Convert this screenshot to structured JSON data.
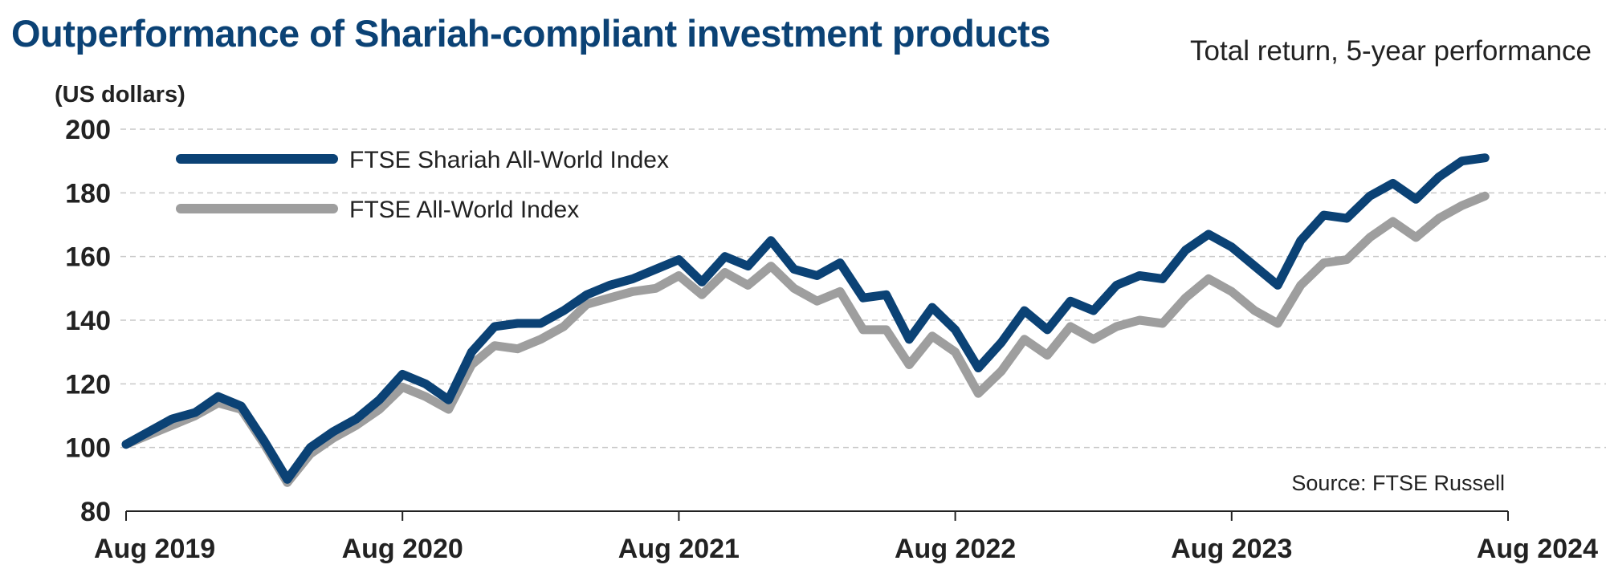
{
  "header": {
    "title": "Outperformance of Shariah-compliant investment products",
    "subtitle": "Total return, 5-year performance"
  },
  "chart_data": {
    "type": "line",
    "ylabel": "(US dollars)",
    "ylim": [
      80,
      200
    ],
    "yticks": [
      80,
      100,
      120,
      140,
      160,
      180,
      200
    ],
    "xlim": [
      0,
      60
    ],
    "xticks": [
      {
        "pos": 0,
        "label": "Aug 2019"
      },
      {
        "pos": 12,
        "label": "Aug 2020"
      },
      {
        "pos": 24,
        "label": "Aug 2021"
      },
      {
        "pos": 36,
        "label": "Aug 2022"
      },
      {
        "pos": 48,
        "label": "Aug 2023"
      },
      {
        "pos": 60,
        "label": "Aug 2024"
      }
    ],
    "grid": true,
    "legend_position": "top-left",
    "source": "Source: FTSE Russell",
    "series": [
      {
        "name": "FTSE Shariah All-World Index",
        "color": "#0b4275",
        "x": [
          0,
          1,
          2,
          3,
          4,
          5,
          6,
          7,
          8,
          9,
          10,
          11,
          12,
          13,
          14,
          15,
          16,
          17,
          18,
          19,
          20,
          21,
          22,
          23,
          24,
          25,
          26,
          27,
          28,
          29,
          30,
          31,
          32,
          33,
          34,
          35,
          36,
          37,
          38,
          39,
          40,
          41,
          42,
          43,
          44,
          45,
          46,
          47,
          48,
          49,
          50,
          51,
          52,
          53,
          54,
          55,
          56,
          57,
          58,
          59
        ],
        "values": [
          101,
          105,
          109,
          111,
          116,
          113,
          102,
          90,
          100,
          105,
          109,
          115,
          123,
          120,
          115,
          130,
          138,
          139,
          139,
          143,
          148,
          151,
          153,
          156,
          159,
          152,
          160,
          157,
          165,
          156,
          154,
          158,
          147,
          148,
          134,
          144,
          137,
          125,
          133,
          143,
          137,
          146,
          143,
          151,
          154,
          153,
          162,
          167,
          163,
          157,
          151,
          165,
          173,
          172,
          179,
          183,
          178,
          185,
          190,
          191
        ]
      },
      {
        "name": "FTSE All-World Index",
        "color": "#9e9e9e",
        "x": [
          0,
          1,
          2,
          3,
          4,
          5,
          6,
          7,
          8,
          9,
          10,
          11,
          12,
          13,
          14,
          15,
          16,
          17,
          18,
          19,
          20,
          21,
          22,
          23,
          24,
          25,
          26,
          27,
          28,
          29,
          30,
          31,
          32,
          33,
          34,
          35,
          36,
          37,
          38,
          39,
          40,
          41,
          42,
          43,
          44,
          45,
          46,
          47,
          48,
          49,
          50,
          51,
          52,
          53,
          54,
          55,
          56,
          57,
          58,
          59
        ],
        "values": [
          101,
          104,
          107,
          110,
          114,
          112,
          101,
          89,
          98,
          103,
          107,
          112,
          119,
          116,
          112,
          126,
          132,
          131,
          134,
          138,
          145,
          147,
          149,
          150,
          154,
          148,
          155,
          151,
          157,
          150,
          146,
          149,
          137,
          137,
          126,
          135,
          130,
          117,
          124,
          134,
          129,
          138,
          134,
          138,
          140,
          139,
          147,
          153,
          149,
          143,
          139,
          151,
          158,
          159,
          166,
          171,
          166,
          172,
          176,
          179
        ]
      }
    ]
  }
}
